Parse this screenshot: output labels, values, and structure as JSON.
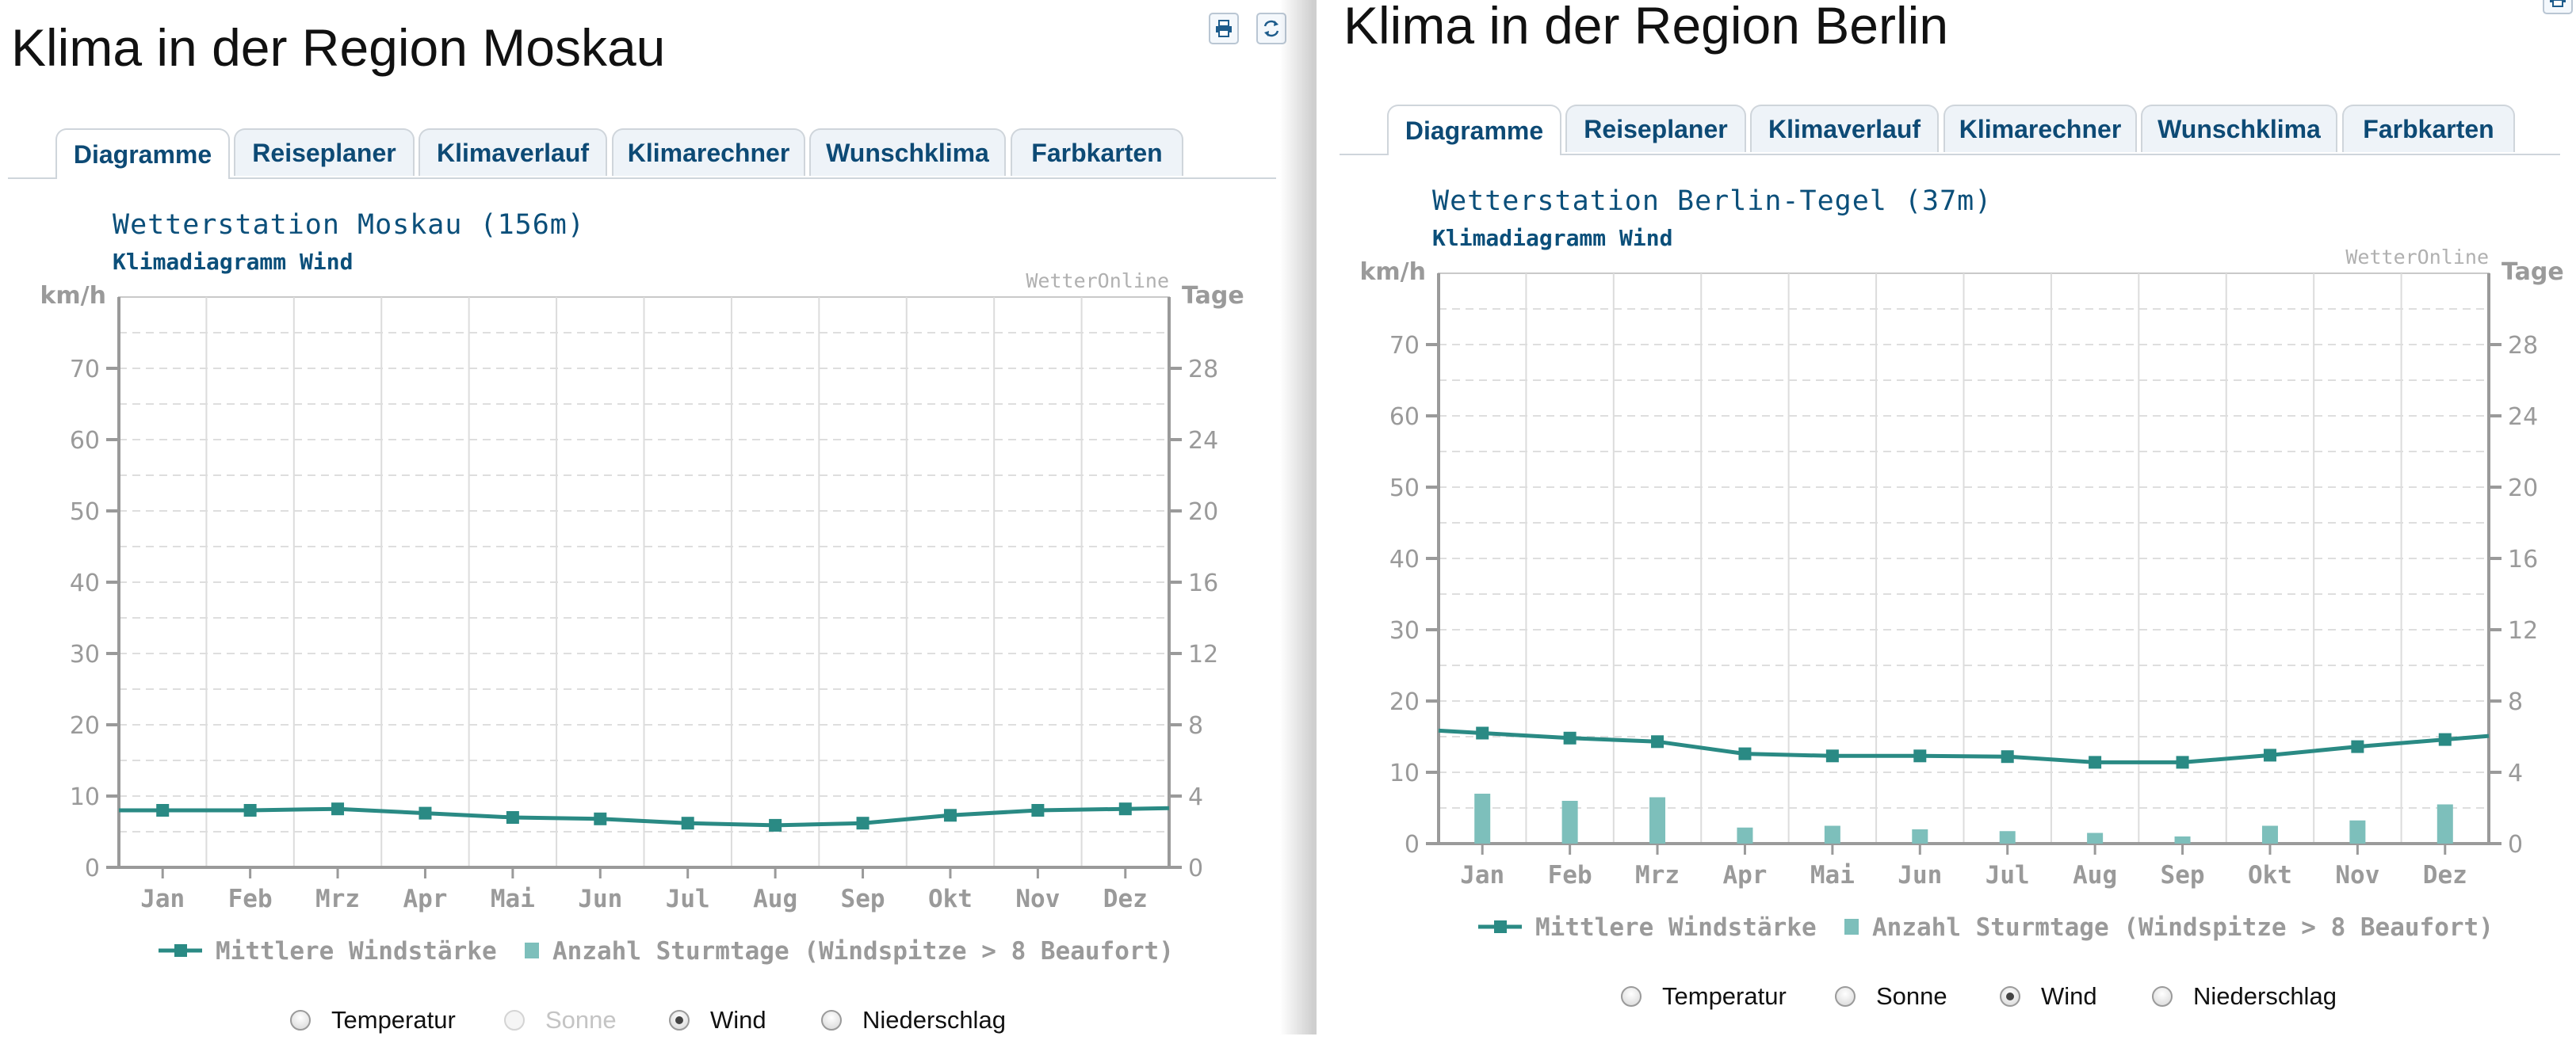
{
  "tabs": [
    "Diagramme",
    "Reiseplaner",
    "Klimaverlauf",
    "Klimarechner",
    "Wunschklima",
    "Farbkarten"
  ],
  "radios": [
    "Temperatur",
    "Sonne",
    "Wind",
    "Niederschlag"
  ],
  "icons": [
    "print-icon",
    "refresh-icon"
  ],
  "colors": {
    "title": "#0b4f7a",
    "series": "#2a8a84",
    "bars": "#7dbfbb",
    "axis": "#9a9a9a",
    "tab_text": "#0d4a75"
  },
  "panels": [
    {
      "page_title": "Klima in der Region Moskau",
      "active_tab": "Diagramme",
      "selected_radio": "Wind",
      "disabled_radio": "Sonne",
      "chart_data": {
        "type": "line",
        "title": "Wetterstation Moskau (156m)",
        "subtitle": "Klimadiagramm Wind",
        "watermark": "WetterOnline",
        "ylabel": "km/h",
        "y2label": "Tage",
        "ylim": [
          0,
          80
        ],
        "y2lim": [
          0,
          32
        ],
        "yticks": [
          0,
          10,
          20,
          30,
          40,
          50,
          60,
          70
        ],
        "y2ticks": [
          0,
          4,
          8,
          12,
          16,
          20,
          24,
          28
        ],
        "grid": true,
        "legend_position": "bottom",
        "categories": [
          "Jan",
          "Feb",
          "Mrz",
          "Apr",
          "Mai",
          "Jun",
          "Jul",
          "Aug",
          "Sep",
          "Okt",
          "Nov",
          "Dez"
        ],
        "series": [
          {
            "name": "Mittlere Windstärke",
            "type": "line",
            "axis": "left",
            "values": [
              8,
              8,
              8.2,
              7.6,
              7,
              6.8,
              6.2,
              5.9,
              6.2,
              7.3,
              8,
              8.2
            ]
          },
          {
            "name": "Anzahl Sturmtage (Windspitze > 8 Beaufort)",
            "type": "bar",
            "axis": "right",
            "values": [
              0,
              0,
              0,
              0,
              0,
              0,
              0,
              0,
              0,
              0,
              0,
              0
            ]
          }
        ]
      }
    },
    {
      "page_title": "Klima in der Region Berlin",
      "active_tab": "Diagramme",
      "selected_radio": "Wind",
      "disabled_radio": "",
      "chart_data": {
        "type": "line",
        "title": "Wetterstation Berlin-Tegel (37m)",
        "subtitle": "Klimadiagramm Wind",
        "watermark": "WetterOnline",
        "ylabel": "km/h",
        "y2label": "Tage",
        "ylim": [
          0,
          80
        ],
        "y2lim": [
          0,
          32
        ],
        "yticks": [
          0,
          10,
          20,
          30,
          40,
          50,
          60,
          70
        ],
        "y2ticks": [
          0,
          4,
          8,
          12,
          16,
          20,
          24,
          28
        ],
        "grid": true,
        "legend_position": "bottom",
        "categories": [
          "Jan",
          "Feb",
          "Mrz",
          "Apr",
          "Mai",
          "Jun",
          "Jul",
          "Aug",
          "Sep",
          "Okt",
          "Nov",
          "Dez"
        ],
        "series": [
          {
            "name": "Mittlere Windstärke",
            "type": "line",
            "axis": "left",
            "values": [
              15.5,
              14.8,
              14.3,
              12.6,
              12.3,
              12.3,
              12.2,
              11.4,
              11.4,
              12.4,
              13.6,
              14.6
            ]
          },
          {
            "name": "Anzahl Sturmtage (Windspitze > 8 Beaufort)",
            "type": "bar",
            "axis": "right",
            "values": [
              2.8,
              2.4,
              2.6,
              0.9,
              1.0,
              0.8,
              0.7,
              0.6,
              0.4,
              1.0,
              1.3,
              2.2
            ]
          }
        ]
      }
    }
  ]
}
